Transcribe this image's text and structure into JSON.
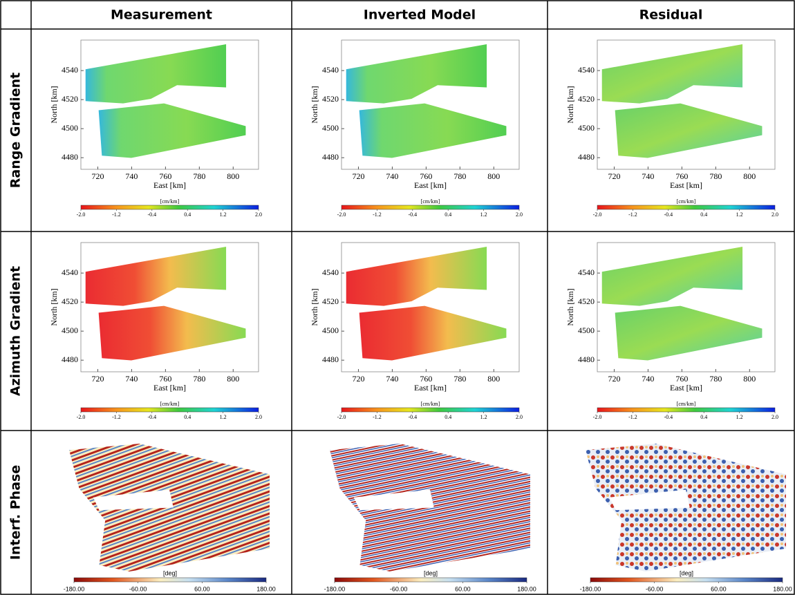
{
  "columns": [
    "Measurement",
    "Inverted Model",
    "Residual"
  ],
  "rows": [
    "Range Gradient",
    "Azimuth Gradient",
    "Interf.  Phase"
  ],
  "map_axes": {
    "xlabel": "East  [km]",
    "ylabel": "North  [km]",
    "xlim": [
      710,
      815
    ],
    "xticks": [
      720,
      740,
      760,
      780,
      800
    ],
    "ylim": [
      4472,
      4561
    ],
    "yticks": [
      4480,
      4500,
      4520,
      4540
    ]
  },
  "gradient_colorbar": {
    "label": "[cm/km]",
    "lim": [
      -2,
      2
    ],
    "ticks": [
      {
        "value": -2,
        "label": "-2.0"
      },
      {
        "value": -1.2,
        "label": "-1.2"
      },
      {
        "value": -0.4,
        "label": "-0.4"
      },
      {
        "value": 0.4,
        "label": "0.4"
      },
      {
        "value": 1.2,
        "label": "1.2"
      },
      {
        "value": 2,
        "label": "2.0"
      }
    ]
  },
  "phase_colorbar": {
    "label": "[deg]",
    "lim": [
      -180,
      180
    ],
    "ticks": [
      {
        "value": -180,
        "label": "-180.00"
      },
      {
        "value": -60,
        "label": "-60.00"
      },
      {
        "value": 60,
        "label": "60.00"
      },
      {
        "value": 180,
        "label": "180.00"
      }
    ]
  }
}
